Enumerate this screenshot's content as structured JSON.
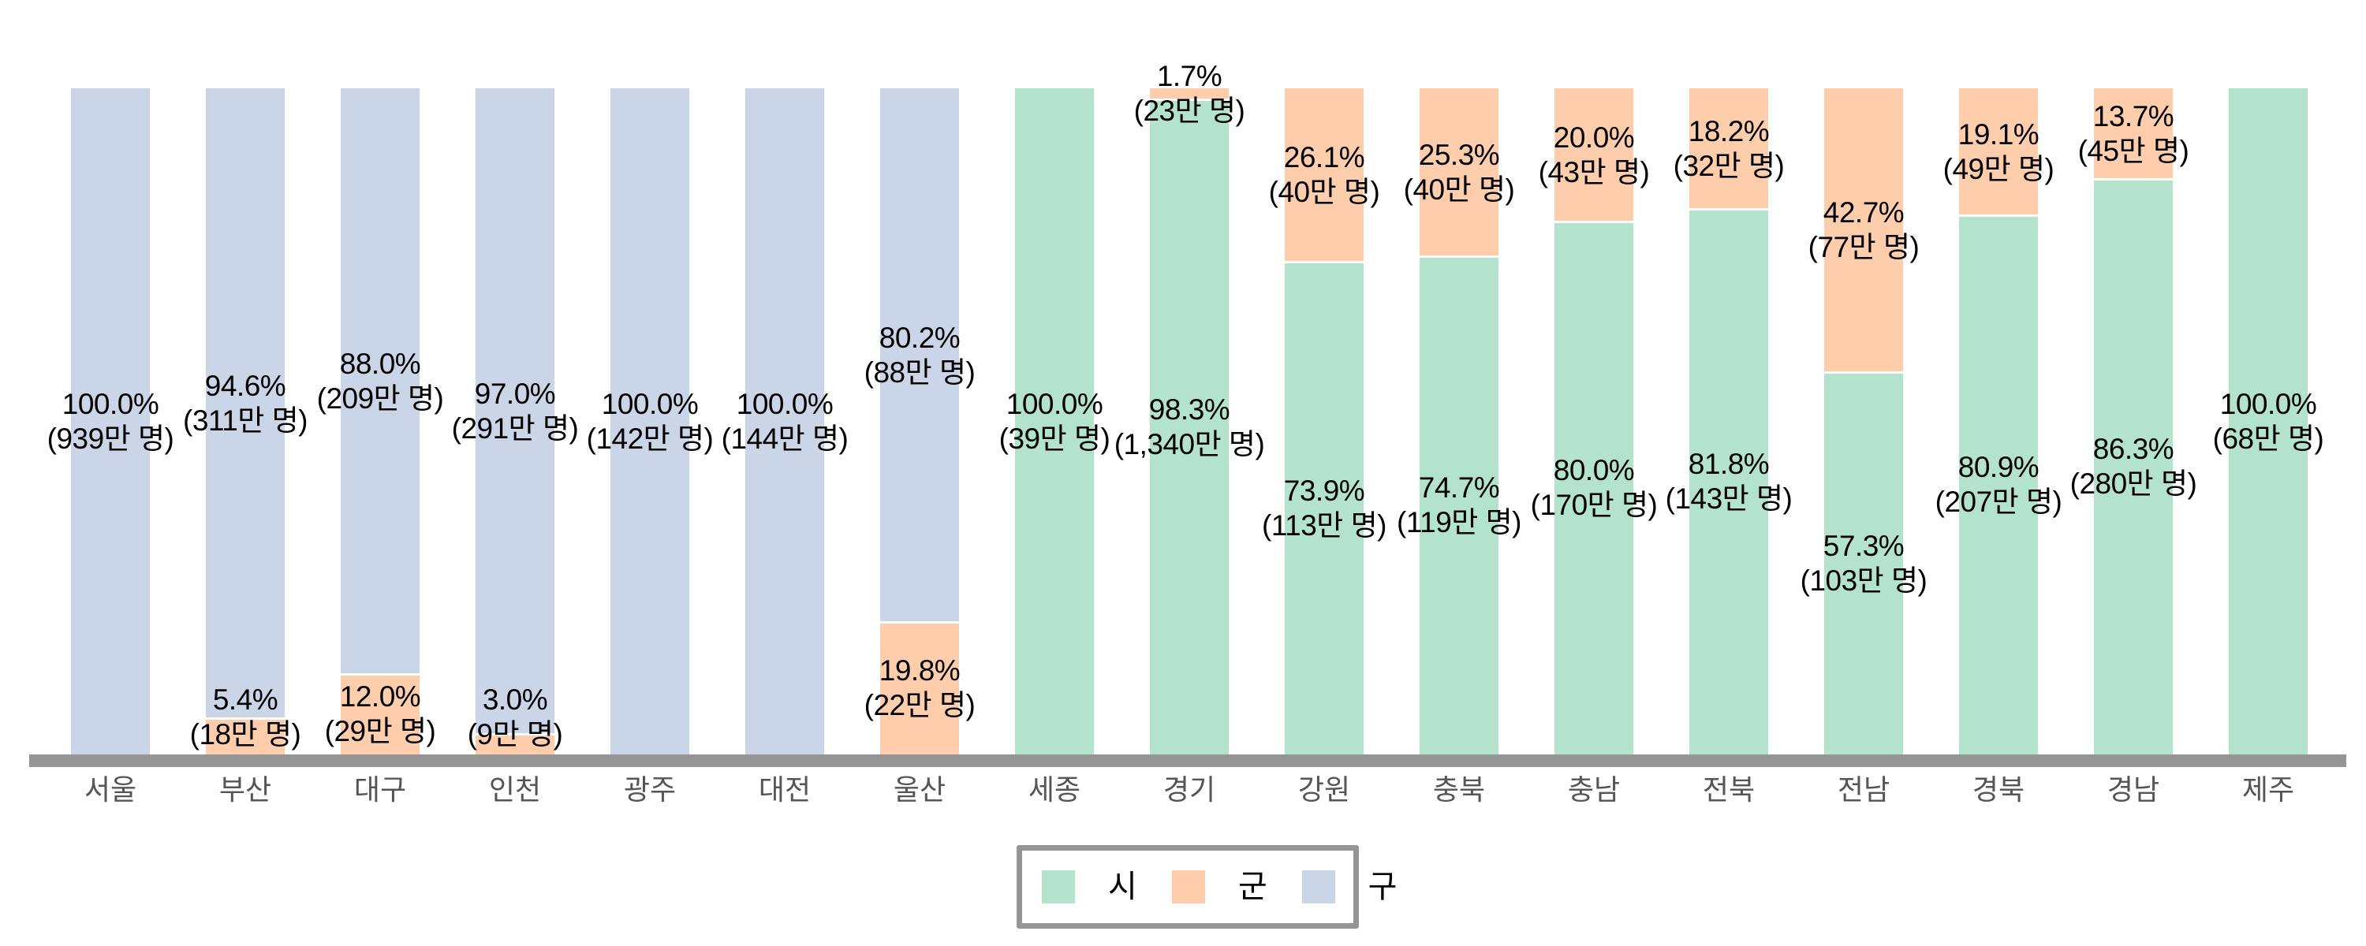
{
  "chart_data": {
    "type": "bar",
    "stacked": true,
    "normalized_percent": true,
    "title": "",
    "xlabel": "",
    "ylabel": "",
    "ylim": [
      0,
      100
    ],
    "grid": false,
    "legend_position": "bottom-center",
    "categories": [
      "서울",
      "부산",
      "대구",
      "인천",
      "광주",
      "대전",
      "울산",
      "세종",
      "경기",
      "강원",
      "충북",
      "충남",
      "전북",
      "전남",
      "경북",
      "경남",
      "제주"
    ],
    "series": [
      {
        "name": "시",
        "color": "#B3E2CD",
        "values": [
          0,
          0,
          0,
          0,
          0,
          0,
          0,
          100.0,
          98.3,
          73.9,
          74.7,
          80.0,
          81.8,
          57.3,
          80.9,
          86.3,
          100.0
        ],
        "population_labels": [
          "",
          "",
          "",
          "",
          "",
          "",
          "",
          "39만 명",
          "1,340만 명",
          "113만 명",
          "119만 명",
          "170만 명",
          "143만 명",
          "103만 명",
          "207만 명",
          "280만 명",
          "68만 명"
        ]
      },
      {
        "name": "군",
        "color": "#FDCDAC",
        "values": [
          0,
          5.4,
          12.0,
          3.0,
          0,
          0,
          19.8,
          0,
          1.7,
          26.1,
          25.3,
          20.0,
          18.2,
          42.7,
          19.1,
          13.7,
          0
        ],
        "population_labels": [
          "",
          "18만 명",
          "29만 명",
          "9만 명",
          "",
          "",
          "22만 명",
          "",
          "23만 명",
          "40만 명",
          "40만 명",
          "43만 명",
          "32만 명",
          "77만 명",
          "49만 명",
          "45만 명",
          ""
        ]
      },
      {
        "name": "구",
        "color": "#CBD5E8",
        "values": [
          100.0,
          94.6,
          88.0,
          97.0,
          100.0,
          100.0,
          80.2,
          0,
          0,
          0,
          0,
          0,
          0,
          0,
          0,
          0,
          0
        ],
        "population_labels": [
          "939만 명",
          "311만 명",
          "209만 명",
          "291만 명",
          "142만 명",
          "144만 명",
          "88만 명",
          "",
          "",
          "",
          "",
          "",
          "",
          "",
          "",
          "",
          ""
        ]
      }
    ]
  },
  "legend": {
    "items": [
      {
        "label": "시",
        "color": "#B3E2CD"
      },
      {
        "label": "군",
        "color": "#FDCDAC"
      },
      {
        "label": "구",
        "color": "#CBD5E8"
      }
    ]
  },
  "axis": {
    "color": "#959595",
    "tick_color": "#555555"
  }
}
